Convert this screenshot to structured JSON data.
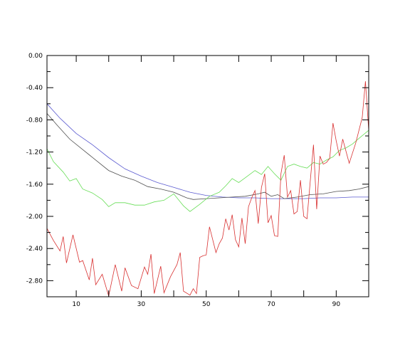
{
  "chart_data": {
    "type": "line",
    "title": "",
    "xlabel": "",
    "ylabel": "",
    "xlim": [
      1,
      100
    ],
    "ylim": [
      -3.0,
      0.0
    ],
    "x_ticks": [
      10,
      30,
      50,
      70,
      90
    ],
    "x_tick_labels": [
      "10",
      "30",
      "50",
      "70",
      "90"
    ],
    "y_ticks": [
      0.0,
      -0.4,
      -0.8,
      -1.2,
      -1.6,
      -2.0,
      -2.4,
      -2.8
    ],
    "y_tick_labels": [
      "0.00",
      "-0.40",
      "-0.80",
      "-1.20",
      "-1.60",
      "-2.00",
      "-2.40",
      "-2.80"
    ],
    "grid": false,
    "series": [
      {
        "color": "#5a5ad0",
        "points": [
          [
            1,
            -0.6
          ],
          [
            5,
            -0.78
          ],
          [
            10,
            -0.97
          ],
          [
            15,
            -1.11
          ],
          [
            20,
            -1.27
          ],
          [
            25,
            -1.41
          ],
          [
            30,
            -1.5
          ],
          [
            35,
            -1.58
          ],
          [
            40,
            -1.64
          ],
          [
            45,
            -1.7
          ],
          [
            50,
            -1.74
          ],
          [
            55,
            -1.76
          ],
          [
            60,
            -1.77
          ],
          [
            65,
            -1.77
          ],
          [
            70,
            -1.78
          ],
          [
            75,
            -1.78
          ],
          [
            80,
            -1.78
          ],
          [
            85,
            -1.77
          ],
          [
            90,
            -1.77
          ],
          [
            95,
            -1.76
          ],
          [
            100,
            -1.76
          ]
        ]
      },
      {
        "color": "#505050",
        "points": [
          [
            1,
            -0.72
          ],
          [
            4,
            -0.86
          ],
          [
            8,
            -1.04
          ],
          [
            12,
            -1.17
          ],
          [
            16,
            -1.3
          ],
          [
            20,
            -1.43
          ],
          [
            24,
            -1.5
          ],
          [
            28,
            -1.55
          ],
          [
            32,
            -1.63
          ],
          [
            36,
            -1.66
          ],
          [
            40,
            -1.7
          ],
          [
            44,
            -1.77
          ],
          [
            46,
            -1.79
          ],
          [
            50,
            -1.78
          ],
          [
            54,
            -1.77
          ],
          [
            58,
            -1.76
          ],
          [
            62,
            -1.75
          ],
          [
            66,
            -1.72
          ],
          [
            68,
            -1.7
          ],
          [
            70,
            -1.75
          ],
          [
            72,
            -1.73
          ],
          [
            74,
            -1.78
          ],
          [
            78,
            -1.76
          ],
          [
            82,
            -1.73
          ],
          [
            86,
            -1.72
          ],
          [
            90,
            -1.69
          ],
          [
            94,
            -1.68
          ],
          [
            97,
            -1.66
          ],
          [
            100,
            -1.63
          ]
        ]
      },
      {
        "color": "#66dd55",
        "points": [
          [
            1,
            -1.16
          ],
          [
            3,
            -1.32
          ],
          [
            6,
            -1.45
          ],
          [
            8,
            -1.56
          ],
          [
            10,
            -1.53
          ],
          [
            12,
            -1.66
          ],
          [
            15,
            -1.71
          ],
          [
            18,
            -1.79
          ],
          [
            20,
            -1.88
          ],
          [
            22,
            -1.83
          ],
          [
            25,
            -1.83
          ],
          [
            28,
            -1.86
          ],
          [
            31,
            -1.86
          ],
          [
            34,
            -1.82
          ],
          [
            37,
            -1.8
          ],
          [
            40,
            -1.72
          ],
          [
            43,
            -1.87
          ],
          [
            45,
            -1.94
          ],
          [
            48,
            -1.85
          ],
          [
            51,
            -1.75
          ],
          [
            54,
            -1.7
          ],
          [
            56,
            -1.62
          ],
          [
            58,
            -1.53
          ],
          [
            60,
            -1.58
          ],
          [
            62,
            -1.52
          ],
          [
            65,
            -1.43
          ],
          [
            67,
            -1.48
          ],
          [
            69,
            -1.38
          ],
          [
            71,
            -1.47
          ],
          [
            73,
            -1.55
          ],
          [
            75,
            -1.38
          ],
          [
            77,
            -1.35
          ],
          [
            79,
            -1.38
          ],
          [
            81,
            -1.4
          ],
          [
            83,
            -1.33
          ],
          [
            85,
            -1.35
          ],
          [
            87,
            -1.3
          ],
          [
            89,
            -1.26
          ],
          [
            91,
            -1.18
          ],
          [
            93,
            -1.15
          ],
          [
            95,
            -1.1
          ],
          [
            97,
            -1.03
          ],
          [
            100,
            -0.93
          ]
        ]
      },
      {
        "color": "#d83030",
        "points": [
          [
            1,
            -2.15
          ],
          [
            3,
            -2.3
          ],
          [
            5,
            -2.43
          ],
          [
            6,
            -2.25
          ],
          [
            7,
            -2.58
          ],
          [
            9,
            -2.23
          ],
          [
            11,
            -2.57
          ],
          [
            12,
            -2.55
          ],
          [
            14,
            -2.79
          ],
          [
            15,
            -2.52
          ],
          [
            16,
            -2.85
          ],
          [
            18,
            -2.72
          ],
          [
            20,
            -2.99
          ],
          [
            22,
            -2.6
          ],
          [
            24,
            -2.93
          ],
          [
            25,
            -2.64
          ],
          [
            27,
            -2.86
          ],
          [
            29,
            -2.9
          ],
          [
            31,
            -2.63
          ],
          [
            32,
            -2.72
          ],
          [
            33,
            -2.47
          ],
          [
            34,
            -2.96
          ],
          [
            36,
            -2.62
          ],
          [
            37,
            -2.95
          ],
          [
            39,
            -2.75
          ],
          [
            41,
            -2.6
          ],
          [
            42,
            -2.45
          ],
          [
            43,
            -2.93
          ],
          [
            45,
            -2.98
          ],
          [
            46,
            -2.9
          ],
          [
            47,
            -2.96
          ],
          [
            48,
            -2.51
          ],
          [
            49,
            -2.49
          ],
          [
            50,
            -2.48
          ],
          [
            51,
            -2.13
          ],
          [
            53,
            -2.45
          ],
          [
            54,
            -2.34
          ],
          [
            55,
            -2.27
          ],
          [
            56,
            -2.03
          ],
          [
            57,
            -2.17
          ],
          [
            58,
            -1.98
          ],
          [
            59,
            -2.29
          ],
          [
            60,
            -2.38
          ],
          [
            61,
            -2.02
          ],
          [
            62,
            -2.34
          ],
          [
            63,
            -1.88
          ],
          [
            64,
            -1.77
          ],
          [
            65,
            -1.68
          ],
          [
            66,
            -2.09
          ],
          [
            67,
            -1.64
          ],
          [
            68,
            -1.47
          ],
          [
            69,
            -2.08
          ],
          [
            70,
            -1.99
          ],
          [
            71,
            -2.24
          ],
          [
            72,
            -2.25
          ],
          [
            73,
            -1.47
          ],
          [
            74,
            -1.24
          ],
          [
            75,
            -1.76
          ],
          [
            76,
            -1.68
          ],
          [
            77,
            -1.97
          ],
          [
            78,
            -1.94
          ],
          [
            79,
            -1.55
          ],
          [
            80,
            -2.0
          ],
          [
            81,
            -2.03
          ],
          [
            82,
            -1.57
          ],
          [
            83,
            -1.11
          ],
          [
            84,
            -1.91
          ],
          [
            85,
            -1.25
          ],
          [
            86,
            -1.35
          ],
          [
            87,
            -1.33
          ],
          [
            88,
            -1.28
          ],
          [
            89,
            -0.84
          ],
          [
            90,
            -1.06
          ],
          [
            91,
            -1.25
          ],
          [
            92,
            -1.04
          ],
          [
            94,
            -1.34
          ],
          [
            96,
            -1.09
          ],
          [
            98,
            -0.77
          ],
          [
            99,
            -0.32
          ],
          [
            100,
            -0.93
          ]
        ]
      }
    ]
  }
}
